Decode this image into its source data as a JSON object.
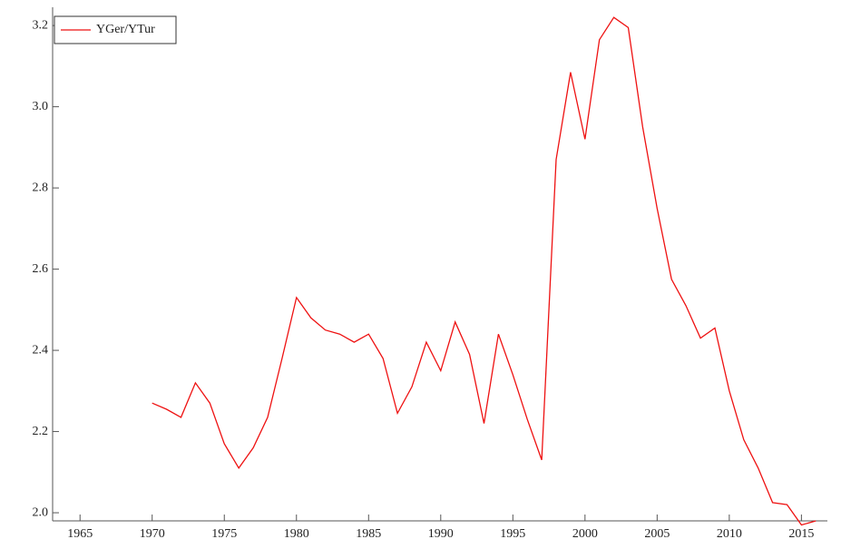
{
  "chart_data": {
    "type": "line",
    "x": [
      1970,
      1971,
      1972,
      1973,
      1974,
      1975,
      1976,
      1977,
      1978,
      1979,
      1980,
      1981,
      1982,
      1983,
      1984,
      1985,
      1986,
      1987,
      1988,
      1989,
      1990,
      1991,
      1992,
      1993,
      1994,
      1995,
      1996,
      1997,
      1998,
      1999,
      2000,
      2001,
      2002,
      2003,
      2004,
      2005,
      2006,
      2007,
      2008,
      2009,
      2010,
      2011,
      2012,
      2013,
      2014,
      2015,
      2016
    ],
    "series": [
      {
        "name": "YGer/YTur",
        "color": "#ee1111",
        "values": [
          2.27,
          2.255,
          2.235,
          2.32,
          2.27,
          2.17,
          2.11,
          2.16,
          2.235,
          2.38,
          2.53,
          2.48,
          2.45,
          2.44,
          2.42,
          2.44,
          2.38,
          2.245,
          2.31,
          2.42,
          2.35,
          2.47,
          2.39,
          2.22,
          2.44,
          2.34,
          2.23,
          2.13,
          2.87,
          3.085,
          2.92,
          3.165,
          3.22,
          3.195,
          2.95,
          2.75,
          2.575,
          2.51,
          2.43,
          2.455,
          2.3,
          2.18,
          2.11,
          2.025,
          2.02,
          1.97,
          1.98
        ]
      }
    ],
    "xlim": [
      1963.1,
      2016.8
    ],
    "xticks": [
      1965,
      1970,
      1975,
      1980,
      1985,
      1990,
      1995,
      2000,
      2005,
      2010,
      2015
    ],
    "ylim": [
      1.98,
      3.245
    ],
    "yticks": [
      {
        "value": 2,
        "label": "2.0"
      },
      2.2,
      2.4,
      2.6,
      2.8,
      {
        "value": 3,
        "label": "3.0"
      },
      3.2
    ],
    "legend": "top-left"
  }
}
